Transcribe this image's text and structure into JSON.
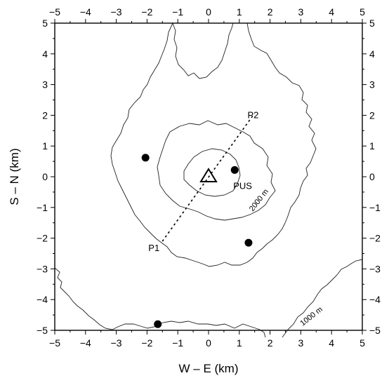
{
  "chart_data": {
    "type": "scatter",
    "xlabel": "W – E (km)",
    "ylabel": "S – N (km)",
    "xlim": [
      -5,
      5
    ],
    "ylim": [
      -5,
      5
    ],
    "x_ticks": [
      "−5",
      "−4",
      "−3",
      "−2",
      "−1",
      "0",
      "1",
      "2",
      "3",
      "4",
      "5"
    ],
    "y_ticks": [
      "−5",
      "−4",
      "−3",
      "−2",
      "−1",
      "0",
      "1",
      "2",
      "3",
      "4",
      "5"
    ],
    "crater": {
      "x": 0,
      "y": 0
    },
    "stations": [
      {
        "x": 0.85,
        "y": 0.22
      },
      {
        "x": -2.05,
        "y": 0.62
      },
      {
        "x": 1.3,
        "y": -2.15
      },
      {
        "x": -1.65,
        "y": -4.8
      }
    ],
    "station_label": "PUS",
    "profile": {
      "start": {
        "x": -1.5,
        "y": -2.1,
        "label": "P1"
      },
      "end": {
        "x": 1.45,
        "y": 2.0,
        "label": "P2"
      }
    },
    "contours": [
      {
        "label": "1000 m"
      },
      {
        "label": "2000 m"
      }
    ],
    "grid": false
  }
}
